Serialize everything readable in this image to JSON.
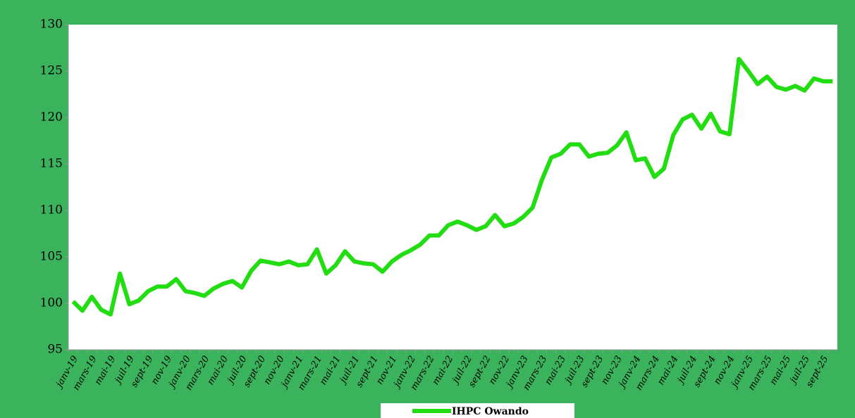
{
  "chart_data": {
    "type": "line",
    "categories": [
      "janv-19",
      null,
      "mars-19",
      null,
      "mai-19",
      null,
      "juil-19",
      null,
      "sept-19",
      null,
      "nov-19",
      null,
      "janv-20",
      null,
      "mars-20",
      null,
      "mai-20",
      null,
      "juil-20",
      null,
      "sept-20",
      null,
      "nov-20",
      null,
      "janv-21",
      null,
      "mars-21",
      null,
      "mai-21",
      null,
      "juil-21",
      null,
      "sept-21",
      null,
      "nov-21",
      null,
      "janv-22",
      null,
      "mars-22",
      null,
      "mai-22",
      null,
      "juil-22",
      null,
      "sept-22",
      null,
      "nov-22",
      null,
      "janv-23",
      null,
      "mars-23",
      null,
      "mai-23",
      null,
      "juil-23",
      null,
      "sept-23",
      null,
      "nov-23",
      null,
      "janv-24",
      null,
      "mars-24",
      null,
      "mai-24",
      null,
      "juil-24",
      null,
      "sept-24",
      null,
      "nov-24",
      null,
      "janv-25",
      null,
      "mars-25",
      null,
      "mai-25",
      null,
      "juil-25",
      null,
      "sept-25",
      null
    ],
    "series": [
      {
        "name": "IHPC Owando",
        "color": "#22dd11",
        "values": [
          100.2,
          99.2,
          100.7,
          99.3,
          98.8,
          103.2,
          99.9,
          100.3,
          101.3,
          101.8,
          101.8,
          102.6,
          101.3,
          101.1,
          100.8,
          101.6,
          102.1,
          102.4,
          101.7,
          103.5,
          104.6,
          104.4,
          104.2,
          104.5,
          104.1,
          104.2,
          105.8,
          103.2,
          104.1,
          105.6,
          104.5,
          104.3,
          104.2,
          103.4,
          104.5,
          105.2,
          105.7,
          106.3,
          107.3,
          107.3,
          108.4,
          108.8,
          108.4,
          107.9,
          108.3,
          109.5,
          108.3,
          108.6,
          109.3,
          110.3,
          113.3,
          115.7,
          116.1,
          117.1,
          117.1,
          115.8,
          116.1,
          116.2,
          117.0,
          118.4,
          115.4,
          115.6,
          113.6,
          114.5,
          118.1,
          119.8,
          120.3,
          118.8,
          120.4,
          118.5,
          118.2,
          126.3,
          125.0,
          123.6,
          124.4,
          123.3,
          123.0,
          123.4,
          122.9,
          124.2,
          123.9,
          123.9
        ]
      }
    ],
    "ylim": [
      95,
      130
    ],
    "yticks": [
      95,
      100,
      105,
      110,
      115,
      120,
      125,
      130
    ],
    "grid": false,
    "legend": "bottom"
  }
}
